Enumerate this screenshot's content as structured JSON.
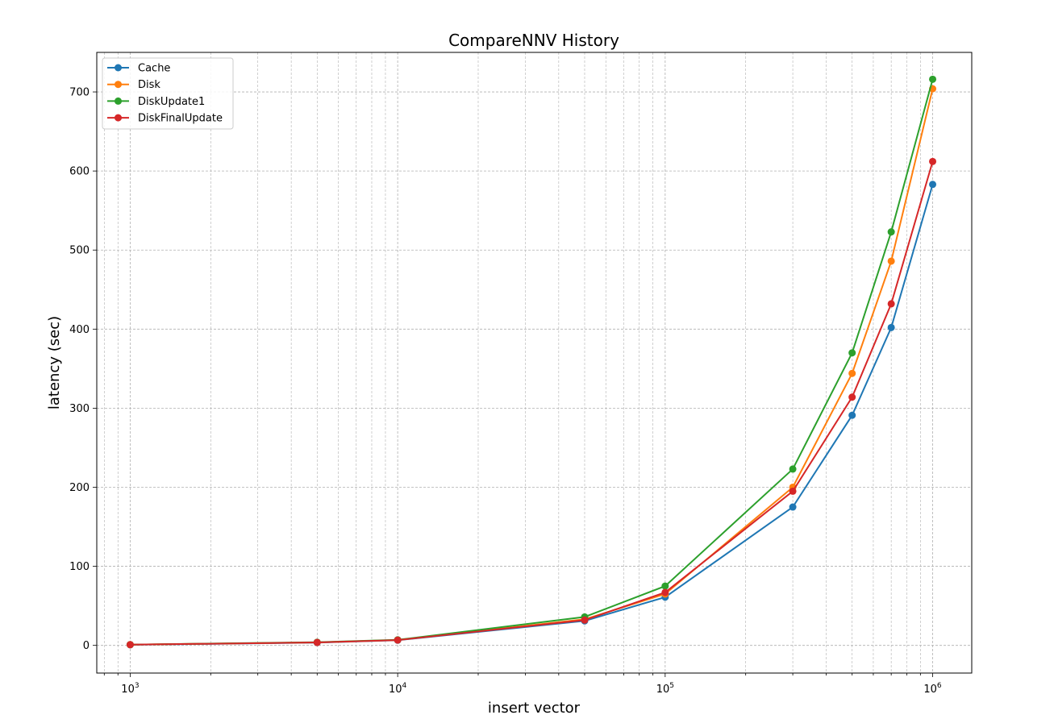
{
  "chart_data": {
    "type": "line",
    "title": "CompareNNV History",
    "xlabel": "insert vector",
    "ylabel": "latency (sec)",
    "xscale": "log",
    "xlim": [
      750,
      1400000
    ],
    "ylim": [
      -35,
      750
    ],
    "x": [
      1000,
      5000,
      10000,
      50000,
      100000,
      300000,
      500000,
      700000,
      1000000
    ],
    "x_tick_labels": [
      {
        "base": "10",
        "exp": "3",
        "value": 1000
      },
      {
        "base": "10",
        "exp": "4",
        "value": 10000
      },
      {
        "base": "10",
        "exp": "5",
        "value": 100000
      },
      {
        "base": "10",
        "exp": "6",
        "value": 1000000
      }
    ],
    "y_ticks": [
      0,
      100,
      200,
      300,
      400,
      500,
      600,
      700
    ],
    "y_tick_labels": [
      "0",
      "100",
      "200",
      "300",
      "400",
      "500",
      "600",
      "700"
    ],
    "grid": true,
    "legend_position": "upper-left",
    "series": [
      {
        "name": "Cache",
        "color": "#1f77b4",
        "values": [
          0.8,
          3.5,
          6.5,
          31,
          61,
          175,
          291,
          402,
          583
        ]
      },
      {
        "name": "Disk",
        "color": "#ff7f0e",
        "values": [
          0.9,
          3.8,
          6.8,
          33,
          65,
          200,
          344,
          486,
          704
        ]
      },
      {
        "name": "DiskUpdate1",
        "color": "#2ca02c",
        "values": [
          1.0,
          4.0,
          7.0,
          36,
          75,
          223,
          370,
          523,
          716
        ]
      },
      {
        "name": "DiskFinalUpdate",
        "color": "#d62728",
        "values": [
          0.9,
          3.7,
          6.7,
          32,
          67,
          195,
          314,
          432,
          612
        ]
      }
    ]
  }
}
